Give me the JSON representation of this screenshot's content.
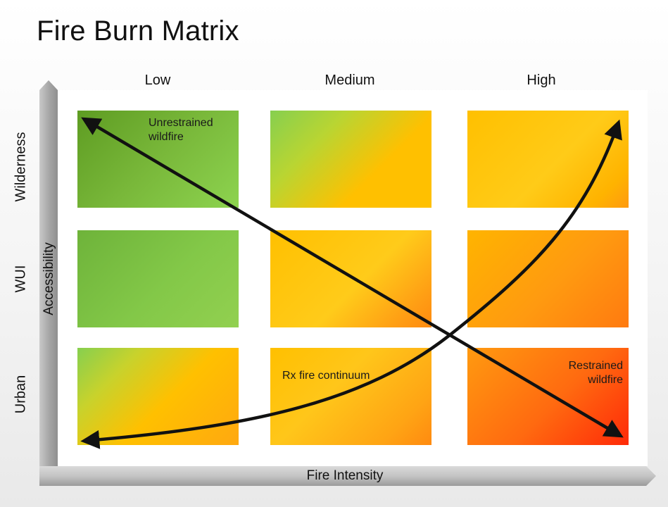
{
  "title": "Fire Burn Matrix",
  "columns": [
    "Low",
    "Medium",
    "High"
  ],
  "rows": [
    "Wilderness",
    "WUI",
    "Urban"
  ],
  "axes": {
    "x_label": "Fire Intensity",
    "y_label": "Accessibility"
  },
  "annotations": {
    "unrestrained": "Unrestrained\nwildfire",
    "rx_continuum": "Rx fire continuum",
    "restrained": "Restrained\nwildfire"
  },
  "colors": {
    "green": "#76b83a",
    "yellow": "#ffc000",
    "orange": "#ff8a10",
    "red": "#ff2a08",
    "arrow": "#111111",
    "axis_gray": "#bdbdbd"
  }
}
